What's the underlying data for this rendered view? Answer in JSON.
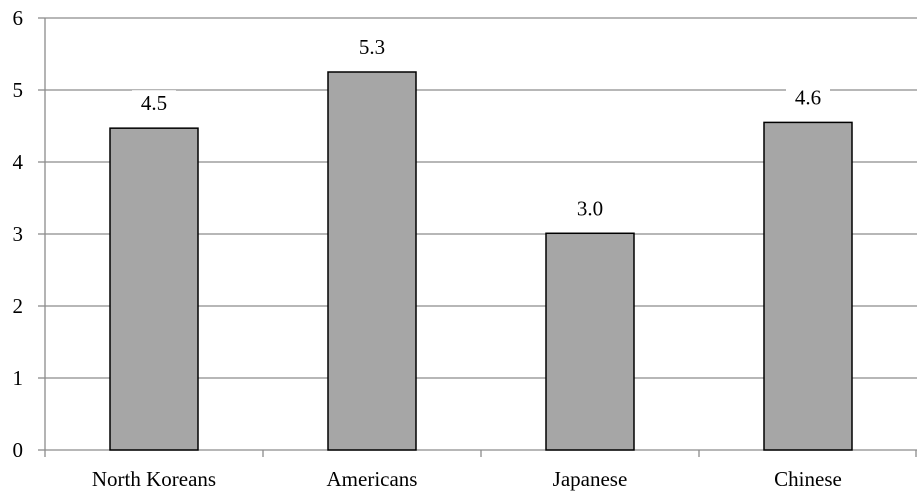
{
  "chart_data": {
    "type": "bar",
    "categories": [
      "North Koreans",
      "Americans",
      "Japanese",
      "Chinese"
    ],
    "values": [
      4.47,
      5.25,
      3.01,
      4.55
    ],
    "data_labels": [
      "4.5",
      "5.3",
      "3.0",
      "4.6"
    ],
    "y_ticks": [
      "0",
      "1",
      "2",
      "3",
      "4",
      "5",
      "6"
    ],
    "ylim": [
      0,
      6
    ],
    "grid": true,
    "legend": "none",
    "title": "",
    "xlabel": "",
    "ylabel": "",
    "colors": {
      "bar_fill": "#a6a6a6",
      "bar_stroke": "#000000",
      "grid": "#8c8c8c",
      "axis": "#8c8c8c"
    }
  }
}
